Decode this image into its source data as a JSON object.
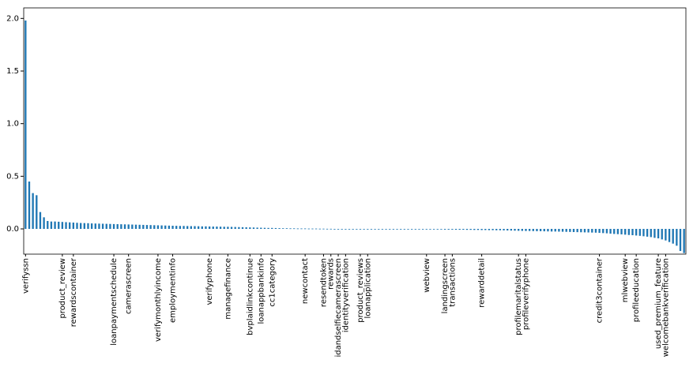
{
  "chart_data": {
    "type": "bar",
    "categories": [
      "verifyssn",
      null,
      null,
      null,
      null,
      null,
      null,
      null,
      null,
      null,
      "product_review",
      null,
      null,
      "rewardscontainer",
      null,
      null,
      null,
      null,
      null,
      null,
      null,
      null,
      null,
      null,
      "loanpaymentschedule",
      null,
      null,
      null,
      "camerascreen",
      null,
      null,
      null,
      null,
      null,
      null,
      null,
      "verifymonthlyincome",
      null,
      null,
      null,
      "employmentinfo",
      null,
      null,
      null,
      null,
      null,
      null,
      null,
      null,
      null,
      "verifyphone",
      null,
      null,
      null,
      null,
      "managefinance",
      null,
      null,
      null,
      null,
      null,
      "bvplaidlinkcontinue",
      null,
      null,
      "loanappbankinfo",
      null,
      null,
      "cc1category",
      null,
      null,
      null,
      null,
      null,
      null,
      null,
      null,
      "newcontact",
      null,
      null,
      null,
      null,
      "resendtoken",
      null,
      "rewards",
      null,
      "idandselfiecamerascreen",
      null,
      "identityverification",
      null,
      null,
      null,
      "product_reviews",
      null,
      "loanapplication",
      null,
      null,
      null,
      null,
      null,
      null,
      null,
      null,
      null,
      null,
      null,
      null,
      null,
      null,
      null,
      "webview",
      null,
      null,
      null,
      null,
      "landingscreen",
      null,
      "transactions",
      null,
      null,
      null,
      null,
      null,
      null,
      null,
      "rewarddetail",
      null,
      null,
      null,
      null,
      null,
      null,
      null,
      null,
      null,
      "profilemaritalstatus",
      null,
      "profileverifyphone",
      null,
      null,
      null,
      null,
      null,
      null,
      null,
      null,
      null,
      null,
      null,
      null,
      null,
      null,
      null,
      null,
      null,
      null,
      null,
      "credit3container",
      null,
      null,
      null,
      null,
      null,
      null,
      "mlwebview",
      null,
      null,
      "profileeducation",
      null,
      null,
      null,
      null,
      null,
      "used_premium_feature",
      null,
      "welcomebankverification",
      null,
      null,
      null,
      null,
      null
    ],
    "values": [
      1.98,
      0.45,
      0.34,
      0.32,
      0.16,
      0.11,
      0.075,
      0.07,
      0.07,
      0.068,
      0.066,
      0.064,
      0.062,
      0.06,
      0.058,
      0.056,
      0.055,
      0.054,
      0.052,
      0.051,
      0.05,
      0.049,
      0.048,
      0.047,
      0.046,
      0.045,
      0.044,
      0.043,
      0.042,
      0.041,
      0.04,
      0.039,
      0.038,
      0.037,
      0.036,
      0.035,
      0.034,
      0.033,
      0.032,
      0.031,
      0.03,
      0.029,
      0.028,
      0.028,
      0.027,
      0.026,
      0.026,
      0.025,
      0.024,
      0.024,
      0.023,
      0.022,
      0.022,
      0.021,
      0.02,
      0.02,
      0.019,
      0.018,
      0.017,
      0.016,
      0.015,
      0.014,
      0.013,
      0.012,
      0.011,
      0.01,
      0.009,
      0.009,
      0.008,
      0.007,
      0.006,
      0.006,
      0.005,
      0.005,
      0.004,
      0.004,
      0.004,
      0.003,
      0.003,
      0.003,
      0.002,
      0.002,
      0.001,
      0.001,
      0,
      0,
      0,
      0,
      0,
      0,
      0,
      0,
      0,
      0,
      0,
      0,
      0,
      0,
      -0.001,
      -0.001,
      -0.002,
      -0.002,
      -0.003,
      -0.003,
      -0.003,
      -0.004,
      -0.004,
      -0.004,
      -0.005,
      -0.005,
      -0.005,
      -0.006,
      -0.006,
      -0.006,
      -0.007,
      -0.007,
      -0.007,
      -0.008,
      -0.008,
      -0.008,
      -0.009,
      -0.009,
      -0.01,
      -0.01,
      -0.011,
      -0.011,
      -0.012,
      -0.012,
      -0.013,
      -0.013,
      -0.014,
      -0.015,
      -0.016,
      -0.017,
      -0.018,
      -0.019,
      -0.02,
      -0.02,
      -0.021,
      -0.022,
      -0.022,
      -0.023,
      -0.024,
      -0.025,
      -0.025,
      -0.026,
      -0.027,
      -0.028,
      -0.029,
      -0.03,
      -0.031,
      -0.032,
      -0.033,
      -0.034,
      -0.035,
      -0.036,
      -0.038,
      -0.04,
      -0.042,
      -0.045,
      -0.048,
      -0.05,
      -0.052,
      -0.055,
      -0.058,
      -0.06,
      -0.063,
      -0.066,
      -0.07,
      -0.074,
      -0.078,
      -0.085,
      -0.09,
      -0.1,
      -0.11,
      -0.125,
      -0.14,
      -0.16,
      -0.21,
      -0.23
    ],
    "color": "#1f77b4",
    "ylim": [
      -0.24,
      2.1
    ],
    "yticks": [
      {
        "value": 0,
        "label": "0.0"
      },
      {
        "value": 0.5,
        "label": "0.5"
      },
      {
        "value": 1,
        "label": "1.0"
      },
      {
        "value": 1.5,
        "label": "1.5"
      },
      {
        "value": 2,
        "label": "2.0"
      }
    ],
    "grid": false
  }
}
